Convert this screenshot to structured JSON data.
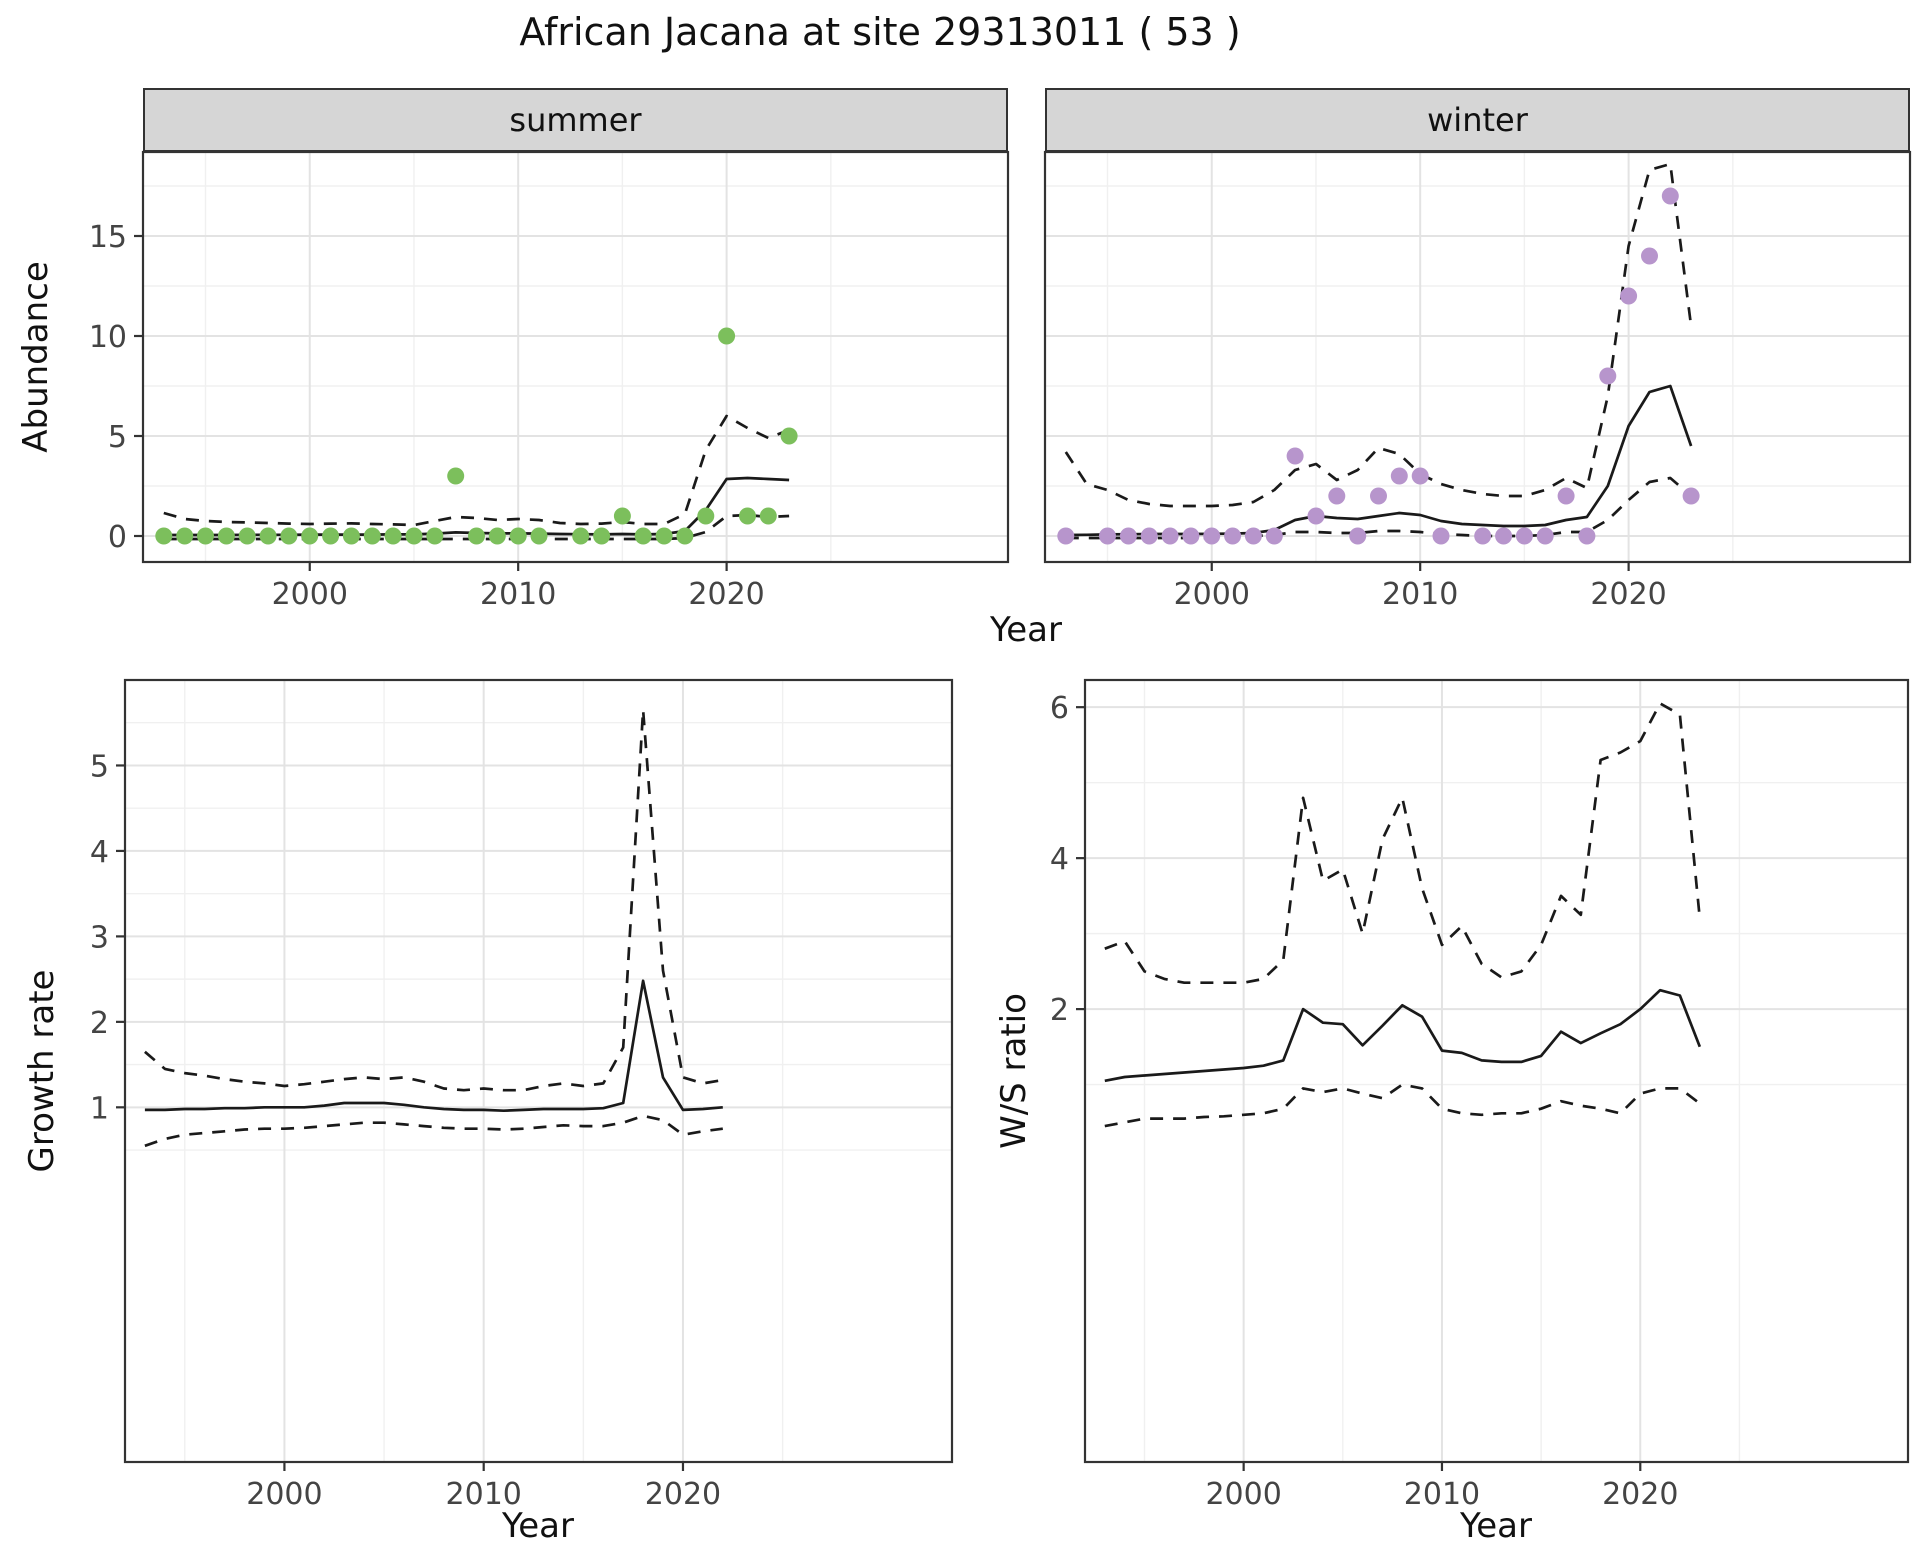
{
  "title": "African Jacana at site 29313011 ( 53 )",
  "labels": {
    "x": "Year",
    "y_abundance": "Abundance",
    "y_growth": "Growth rate",
    "y_ws": "W/S ratio"
  },
  "facets": {
    "summer": "summer",
    "winter": "winter"
  },
  "colors": {
    "summer_point": "#7cbf5c",
    "winter_point": "#b795cc",
    "line": "#1a1a1a",
    "grid_major": "#e3e3e3",
    "grid_minor": "#f0f0f0",
    "strip_bg": "#d6d6d6",
    "tick_label": "#444444"
  },
  "chart_data": [
    {
      "id": "abundance-summer",
      "type": "scatter",
      "facet": "summer",
      "xlabel": "Year",
      "ylabel": "Abundance",
      "xlim": [
        1992,
        2033.5
      ],
      "ylim": [
        -1.3,
        19.2
      ],
      "xticks": [
        2000,
        2010,
        2020
      ],
      "yticks": [
        0,
        5,
        10,
        15
      ],
      "xminor": [
        1995,
        2005,
        2015,
        2025
      ],
      "yminor": [
        2.5,
        7.5,
        12.5,
        17.5
      ],
      "point_color": "#7cbf5c",
      "years": [
        1993,
        1994,
        1995,
        1996,
        1997,
        1998,
        1999,
        2000,
        2001,
        2002,
        2003,
        2004,
        2005,
        2006,
        2007,
        2008,
        2009,
        2010,
        2011,
        2012,
        2013,
        2014,
        2015,
        2016,
        2017,
        2018,
        2019,
        2020,
        2021,
        2022,
        2023
      ],
      "points": {
        "x": [
          1993,
          1994,
          1995,
          1996,
          1997,
          1998,
          1999,
          2000,
          2001,
          2002,
          2003,
          2004,
          2005,
          2006,
          2007,
          2008,
          2009,
          2010,
          2011,
          2013,
          2014,
          2015,
          2016,
          2017,
          2018,
          2019,
          2020,
          2021,
          2022,
          2023
        ],
        "y": [
          0,
          0,
          0,
          0,
          0,
          0,
          0,
          0,
          0,
          0,
          0,
          0,
          0,
          0,
          3,
          0,
          0,
          0,
          0,
          0,
          0,
          1,
          0,
          0,
          0,
          1,
          10,
          1,
          1,
          5
        ]
      },
      "fit": {
        "y": [
          0.05,
          0.05,
          0.05,
          0.05,
          0.06,
          0.06,
          0.06,
          0.07,
          0.07,
          0.07,
          0.07,
          0.08,
          0.08,
          0.12,
          0.18,
          0.15,
          0.13,
          0.13,
          0.12,
          0.1,
          0.09,
          0.08,
          0.1,
          0.08,
          0.1,
          0.25,
          1.3,
          2.85,
          2.9,
          2.85,
          2.8
        ]
      },
      "upper": {
        "y": [
          1.15,
          0.85,
          0.75,
          0.7,
          0.68,
          0.65,
          0.62,
          0.6,
          0.62,
          0.63,
          0.6,
          0.58,
          0.55,
          0.75,
          0.95,
          0.9,
          0.8,
          0.85,
          0.8,
          0.65,
          0.6,
          0.62,
          0.7,
          0.6,
          0.6,
          1.1,
          4.3,
          6.0,
          5.4,
          4.9,
          5.3
        ]
      },
      "lower": {
        "y": [
          -0.15,
          -0.15,
          -0.15,
          -0.15,
          -0.15,
          -0.15,
          -0.15,
          -0.15,
          -0.15,
          -0.15,
          -0.15,
          -0.15,
          -0.15,
          -0.15,
          -0.15,
          -0.15,
          -0.15,
          -0.15,
          -0.15,
          -0.15,
          -0.15,
          -0.15,
          -0.15,
          -0.15,
          -0.15,
          -0.1,
          0.2,
          1.0,
          1.05,
          0.95,
          1.0
        ]
      }
    },
    {
      "id": "abundance-winter",
      "type": "scatter",
      "facet": "winter",
      "xlabel": "Year",
      "ylabel": "Abundance",
      "xlim": [
        1992,
        2033.5
      ],
      "ylim": [
        -1.3,
        19.2
      ],
      "xticks": [
        2000,
        2010,
        2020
      ],
      "yticks": [
        0,
        5,
        10,
        15
      ],
      "xminor": [
        1995,
        2005,
        2015,
        2025
      ],
      "yminor": [
        2.5,
        7.5,
        12.5,
        17.5
      ],
      "point_color": "#b795cc",
      "years": [
        1993,
        1994,
        1995,
        1996,
        1997,
        1998,
        1999,
        2000,
        2001,
        2002,
        2003,
        2004,
        2005,
        2006,
        2007,
        2008,
        2009,
        2010,
        2011,
        2012,
        2013,
        2014,
        2015,
        2016,
        2017,
        2018,
        2019,
        2020,
        2021,
        2022,
        2023
      ],
      "points": {
        "x": [
          1993,
          1995,
          1996,
          1997,
          1998,
          1999,
          2000,
          2001,
          2002,
          2003,
          2004,
          2005,
          2006,
          2007,
          2008,
          2009,
          2010,
          2011,
          2013,
          2014,
          2015,
          2016,
          2017,
          2018,
          2019,
          2020,
          2021,
          2022,
          2023
        ],
        "y": [
          0,
          0,
          0,
          0,
          0,
          0,
          0,
          0,
          0,
          0,
          4,
          1,
          2,
          0,
          2,
          3,
          3,
          0,
          0,
          0,
          0,
          0,
          2,
          0,
          8,
          12,
          14,
          17,
          2
        ]
      },
      "fit": {
        "y": [
          0.05,
          0.06,
          0.08,
          0.09,
          0.1,
          0.1,
          0.1,
          0.11,
          0.12,
          0.15,
          0.3,
          0.8,
          1.0,
          0.9,
          0.85,
          1.0,
          1.15,
          1.05,
          0.75,
          0.6,
          0.55,
          0.5,
          0.5,
          0.55,
          0.8,
          0.95,
          2.5,
          5.5,
          7.2,
          7.5,
          4.5
        ]
      },
      "upper": {
        "y": [
          4.2,
          2.6,
          2.3,
          1.8,
          1.6,
          1.5,
          1.5,
          1.5,
          1.55,
          1.7,
          2.3,
          3.3,
          3.6,
          2.8,
          3.3,
          4.4,
          4.1,
          3.1,
          2.6,
          2.3,
          2.1,
          2.0,
          2.0,
          2.3,
          2.9,
          2.4,
          7.0,
          14.5,
          18.3,
          18.6,
          10.5
        ]
      },
      "lower": {
        "y": [
          -0.1,
          -0.1,
          -0.1,
          -0.1,
          -0.1,
          -0.1,
          -0.1,
          -0.1,
          -0.05,
          0,
          0.05,
          0.2,
          0.2,
          0.15,
          0.15,
          0.25,
          0.25,
          0.2,
          0.1,
          0.05,
          0,
          0,
          0,
          0.05,
          0.2,
          0.2,
          0.8,
          1.8,
          2.7,
          2.9,
          2.0
        ]
      }
    },
    {
      "id": "growth-rate",
      "type": "line",
      "xlabel": "Year",
      "ylabel": "Growth rate",
      "xlim": [
        1992,
        2033.5
      ],
      "ylim": [
        -3.15,
        6.0
      ],
      "xticks": [
        2000,
        2010,
        2020
      ],
      "yticks": [
        1,
        2,
        3,
        4,
        5
      ],
      "xminor": [
        1995,
        2005,
        2015,
        2025
      ],
      "yminor": [
        0.5,
        1.5,
        2.5,
        3.5,
        4.5,
        5.5
      ],
      "years": [
        1993,
        1994,
        1995,
        1996,
        1997,
        1998,
        1999,
        2000,
        2001,
        2002,
        2003,
        2004,
        2005,
        2006,
        2007,
        2008,
        2009,
        2010,
        2011,
        2012,
        2013,
        2014,
        2015,
        2016,
        2017,
        2018,
        2019,
        2020,
        2021,
        2022
      ],
      "fit": {
        "y": [
          0.97,
          0.97,
          0.98,
          0.98,
          0.99,
          0.99,
          1.0,
          1.0,
          1.0,
          1.02,
          1.05,
          1.05,
          1.05,
          1.03,
          1.0,
          0.98,
          0.97,
          0.97,
          0.96,
          0.97,
          0.98,
          0.98,
          0.98,
          0.99,
          1.05,
          2.48,
          1.35,
          0.97,
          0.98,
          1.0
        ]
      },
      "upper": {
        "y": [
          1.65,
          1.45,
          1.4,
          1.37,
          1.33,
          1.3,
          1.28,
          1.25,
          1.27,
          1.3,
          1.33,
          1.35,
          1.33,
          1.35,
          1.3,
          1.22,
          1.2,
          1.22,
          1.2,
          1.2,
          1.25,
          1.28,
          1.25,
          1.28,
          1.7,
          5.65,
          2.6,
          1.35,
          1.28,
          1.32
        ]
      },
      "lower": {
        "y": [
          0.55,
          0.63,
          0.68,
          0.7,
          0.72,
          0.74,
          0.75,
          0.75,
          0.76,
          0.78,
          0.8,
          0.82,
          0.82,
          0.8,
          0.78,
          0.76,
          0.75,
          0.75,
          0.74,
          0.75,
          0.77,
          0.79,
          0.78,
          0.78,
          0.82,
          0.9,
          0.85,
          0.68,
          0.72,
          0.75
        ]
      }
    },
    {
      "id": "ws-ratio",
      "type": "line",
      "xlabel": "Year",
      "ylabel": "W/S ratio",
      "xlim": [
        1992,
        2033.5
      ],
      "ylim": [
        -4.0,
        6.36
      ],
      "xticks": [
        2000,
        2010,
        2020
      ],
      "yticks": [
        2,
        4,
        6
      ],
      "xminor": [
        1995,
        2005,
        2015,
        2025
      ],
      "yminor": [
        1,
        3,
        5
      ],
      "years": [
        1993,
        1994,
        1995,
        1996,
        1997,
        1998,
        1999,
        2000,
        2001,
        2002,
        2003,
        2004,
        2005,
        2006,
        2007,
        2008,
        2009,
        2010,
        2011,
        2012,
        2013,
        2014,
        2015,
        2016,
        2017,
        2018,
        2019,
        2020,
        2021,
        2022,
        2023
      ],
      "fit": {
        "y": [
          1.05,
          1.1,
          1.12,
          1.14,
          1.16,
          1.18,
          1.2,
          1.22,
          1.25,
          1.32,
          2.0,
          1.82,
          1.8,
          1.52,
          1.78,
          2.05,
          1.9,
          1.45,
          1.42,
          1.32,
          1.3,
          1.3,
          1.38,
          1.7,
          1.55,
          1.68,
          1.8,
          2.0,
          2.25,
          2.18,
          1.5
        ]
      },
      "upper": {
        "y": [
          2.8,
          2.9,
          2.5,
          2.4,
          2.35,
          2.35,
          2.35,
          2.35,
          2.4,
          2.65,
          4.8,
          3.7,
          3.85,
          3.0,
          4.25,
          4.8,
          3.6,
          2.85,
          3.1,
          2.6,
          2.42,
          2.5,
          2.85,
          3.5,
          3.25,
          5.3,
          5.4,
          5.55,
          6.05,
          5.9,
          3.2
        ]
      },
      "lower": {
        "y": [
          0.45,
          0.5,
          0.55,
          0.55,
          0.55,
          0.57,
          0.58,
          0.6,
          0.62,
          0.68,
          0.95,
          0.9,
          0.95,
          0.88,
          0.82,
          1.0,
          0.95,
          0.68,
          0.62,
          0.6,
          0.62,
          0.62,
          0.68,
          0.78,
          0.72,
          0.68,
          0.62,
          0.88,
          0.95,
          0.95,
          0.75
        ]
      }
    }
  ]
}
